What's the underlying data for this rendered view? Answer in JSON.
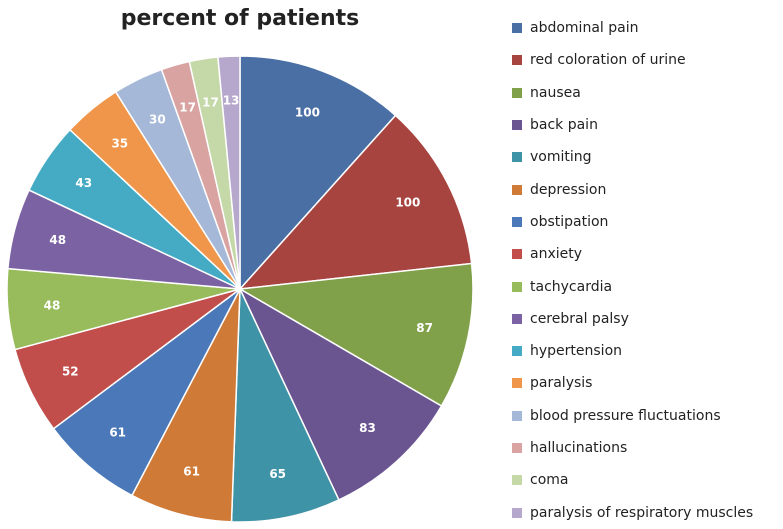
{
  "chart_data": {
    "type": "pie",
    "title": "percent of patients",
    "legend_position": "right",
    "slices": [
      {
        "label": "abdominal pain",
        "value": 100,
        "color": "#4a6fa5"
      },
      {
        "label": "red coloration of urine",
        "value": 100,
        "color": "#a84440"
      },
      {
        "label": "nausea",
        "value": 87,
        "color": "#80a04a"
      },
      {
        "label": "back pain",
        "value": 83,
        "color": "#6a5590"
      },
      {
        "label": "vomiting",
        "value": 65,
        "color": "#3f93a6"
      },
      {
        "label": "depression",
        "value": 61,
        "color": "#d07a37"
      },
      {
        "label": "obstipation",
        "value": 61,
        "color": "#4a78b8"
      },
      {
        "label": "anxiety",
        "value": 52,
        "color": "#c24e4c"
      },
      {
        "label": "tachycardia",
        "value": 48,
        "color": "#98bc5c"
      },
      {
        "label": "cerebral palsy",
        "value": 48,
        "color": "#7b62a3"
      },
      {
        "label": "hypertension",
        "value": 43,
        "color": "#45abc4"
      },
      {
        "label": "paralysis",
        "value": 35,
        "color": "#f0964a"
      },
      {
        "label": "blood pressure fluctuations",
        "value": 30,
        "color": "#a6b8d8"
      },
      {
        "label": "hallucinations",
        "value": 17,
        "color": "#d9a3a2"
      },
      {
        "label": "coma",
        "value": 17,
        "color": "#c5d8a8"
      },
      {
        "label": "paralysis of respiratory muscles",
        "value": 13,
        "color": "#b6a8cc"
      }
    ]
  }
}
